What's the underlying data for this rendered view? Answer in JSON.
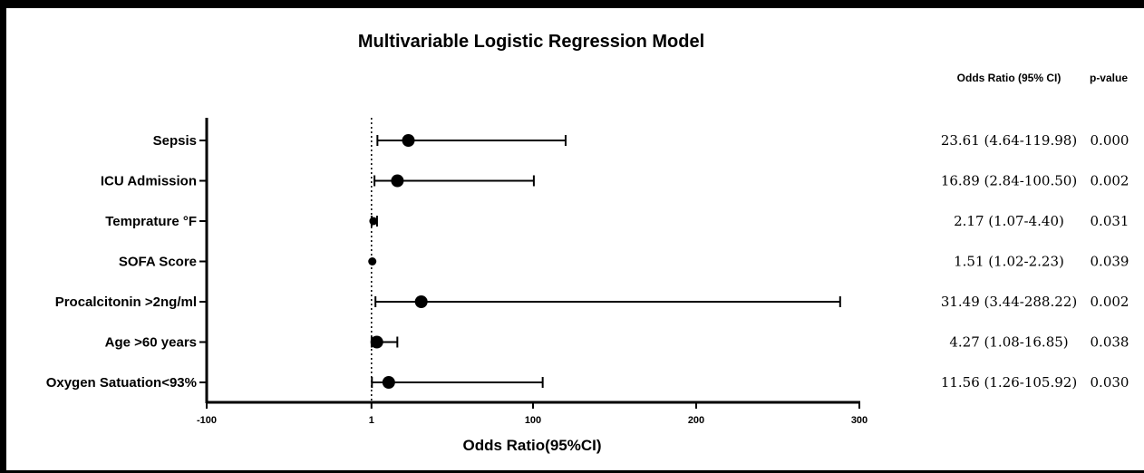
{
  "chart_data": {
    "type": "forest",
    "title": "Multivariable Logistic Regression Model",
    "xlabel": "Odds Ratio(95%CI)",
    "xlim": [
      -100,
      300
    ],
    "xticks": [
      {
        "value": -100,
        "label": "-100"
      },
      {
        "value": 1,
        "label": "1"
      },
      {
        "value": 100,
        "label": "100"
      },
      {
        "value": 200,
        "label": "200"
      },
      {
        "value": 300,
        "label": "300"
      }
    ],
    "reference_line": 1,
    "columns": [
      "Odds Ratio (95% CI)",
      "p-value"
    ],
    "rows": [
      {
        "label": "Sepsis",
        "or": 23.61,
        "lo": 4.64,
        "hi": 119.98,
        "ci_text": "23.61 (4.64-119.98)",
        "p": "0.000"
      },
      {
        "label": "ICU Admission",
        "or": 16.89,
        "lo": 2.84,
        "hi": 100.5,
        "ci_text": "16.89 (2.84-100.50)",
        "p": "0.002"
      },
      {
        "label": "Temprature °F",
        "or": 2.17,
        "lo": 1.07,
        "hi": 4.4,
        "ci_text": "2.17 (1.07-4.40)",
        "p": "0.031"
      },
      {
        "label": "SOFA Score",
        "or": 1.51,
        "lo": 1.02,
        "hi": 2.23,
        "ci_text": "1.51 (1.02-2.23)",
        "p": "0.039"
      },
      {
        "label": "Procalcitonin >2ng/ml",
        "or": 31.49,
        "lo": 3.44,
        "hi": 288.22,
        "ci_text": "31.49 (3.44-288.22)",
        "p": "0.002"
      },
      {
        "label": "Age >60 years",
        "or": 4.27,
        "lo": 1.08,
        "hi": 16.85,
        "ci_text": "4.27 (1.08-16.85)",
        "p": "0.038"
      },
      {
        "label": "Oxygen Satuation<93%",
        "or": 11.56,
        "lo": 1.26,
        "hi": 105.92,
        "ci_text": "11.56 (1.26-105.92)",
        "p": "0.030"
      }
    ]
  }
}
